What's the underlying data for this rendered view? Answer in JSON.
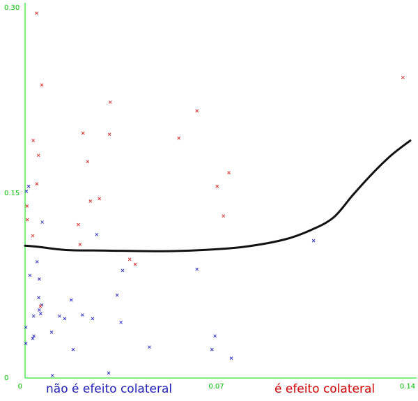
{
  "chart_data": {
    "type": "scatter",
    "title": "",
    "xlabel": "",
    "ylabel": "",
    "xlim": [
      0,
      0.14
    ],
    "ylim": [
      0,
      0.3
    ],
    "x_ticks": [
      {
        "value": 0,
        "label": "0"
      },
      {
        "value": 0.07,
        "label": "0.07"
      },
      {
        "value": 0.14,
        "label": "0.14"
      }
    ],
    "y_ticks": [
      {
        "value": 0,
        "label": "0"
      },
      {
        "value": 0.15,
        "label": "0.15"
      },
      {
        "value": 0.3,
        "label": "0.30"
      }
    ],
    "legend": {
      "placement": "bottom"
    },
    "series": [
      {
        "name": "não é efeito colateral",
        "color": "#3333cc",
        "marker": "x",
        "points": [
          [
            0.0005,
            0.151
          ],
          [
            0.0013,
            0.155
          ],
          [
            0.0018,
            0.083
          ],
          [
            0.0003,
            0.041
          ],
          [
            0.0003,
            0.028
          ],
          [
            0.0028,
            0.032
          ],
          [
            0.0032,
            0.034
          ],
          [
            0.0031,
            0.05
          ],
          [
            0.0044,
            0.094
          ],
          [
            0.005,
            0.065
          ],
          [
            0.0052,
            0.08
          ],
          [
            0.0052,
            0.055
          ],
          [
            0.0057,
            0.052
          ],
          [
            0.0061,
            0.059
          ],
          [
            0.0063,
            0.126
          ],
          [
            0.0097,
            0.037
          ],
          [
            0.01,
            0.002
          ],
          [
            0.0126,
            0.05
          ],
          [
            0.0145,
            0.048
          ],
          [
            0.0169,
            0.063
          ],
          [
            0.0176,
            0.023
          ],
          [
            0.021,
            0.051
          ],
          [
            0.0247,
            0.048
          ],
          [
            0.0262,
            0.116
          ],
          [
            0.0306,
            0.004
          ],
          [
            0.0337,
            0.067
          ],
          [
            0.0351,
            0.045
          ],
          [
            0.0357,
            0.087
          ],
          [
            0.0455,
            0.025
          ],
          [
            0.0629,
            0.088
          ],
          [
            0.0684,
            0.023
          ],
          [
            0.0695,
            0.034
          ],
          [
            0.0755,
            0.016
          ],
          [
            0.1056,
            0.111
          ]
        ]
      },
      {
        "name": "é efeito colateral",
        "color": "#dd3333",
        "marker": "x",
        "points": [
          [
            0.0042,
            0.295
          ],
          [
            0.0061,
            0.237
          ],
          [
            0.003,
            0.192
          ],
          [
            0.0049,
            0.18
          ],
          [
            0.0043,
            0.157
          ],
          [
            0.0007,
            0.139
          ],
          [
            0.0008,
            0.128
          ],
          [
            0.0028,
            0.115
          ],
          [
            0.0056,
            0.058
          ],
          [
            0.0212,
            0.198
          ],
          [
            0.0229,
            0.175
          ],
          [
            0.0312,
            0.223
          ],
          [
            0.0309,
            0.197
          ],
          [
            0.0239,
            0.143
          ],
          [
            0.0272,
            0.145
          ],
          [
            0.0195,
            0.124
          ],
          [
            0.0201,
            0.108
          ],
          [
            0.0383,
            0.096
          ],
          [
            0.0403,
            0.092
          ],
          [
            0.0563,
            0.194
          ],
          [
            0.0629,
            0.216
          ],
          [
            0.0703,
            0.155
          ],
          [
            0.0746,
            0.166
          ],
          [
            0.0726,
            0.131
          ],
          [
            0.1383,
            0.243
          ]
        ]
      }
    ],
    "boundary": {
      "color": "#111111",
      "points": [
        [
          0.0,
          0.107
        ],
        [
          0.005,
          0.106
        ],
        [
          0.015,
          0.1035
        ],
        [
          0.03,
          0.103
        ],
        [
          0.05,
          0.1025
        ],
        [
          0.065,
          0.1035
        ],
        [
          0.08,
          0.106
        ],
        [
          0.095,
          0.112
        ],
        [
          0.105,
          0.12
        ],
        [
          0.113,
          0.13
        ],
        [
          0.12,
          0.148
        ],
        [
          0.127,
          0.165
        ],
        [
          0.134,
          0.18
        ],
        [
          0.141,
          0.192
        ]
      ]
    }
  }
}
